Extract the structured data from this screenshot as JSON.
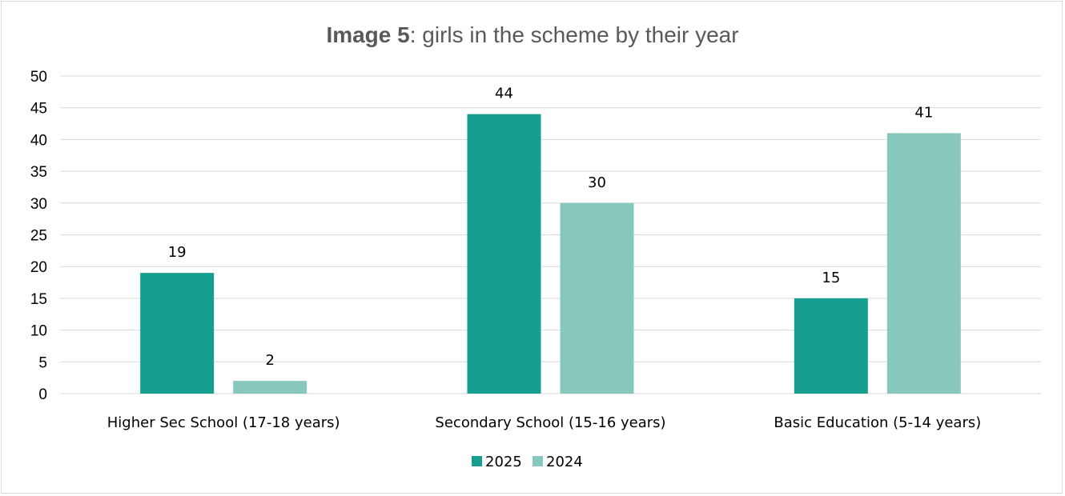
{
  "chart_data": {
    "type": "bar",
    "title_bold": "Image 5",
    "title_rest": ": girls in the scheme by their year",
    "categories": [
      "Higher Sec School (17-18 years)",
      "Secondary School (15-16 years)",
      "Basic Education (5-14 years)"
    ],
    "series": [
      {
        "name": "2025",
        "values": [
          19,
          44,
          15
        ],
        "color": "#169f8e"
      },
      {
        "name": "2024",
        "values": [
          2,
          30,
          41
        ],
        "color": "#88c8bc"
      }
    ],
    "ylim": [
      0,
      50
    ],
    "yticks": [
      0,
      5,
      10,
      15,
      20,
      25,
      30,
      35,
      40,
      45,
      50
    ],
    "grid": true,
    "legend_position": "bottom"
  }
}
